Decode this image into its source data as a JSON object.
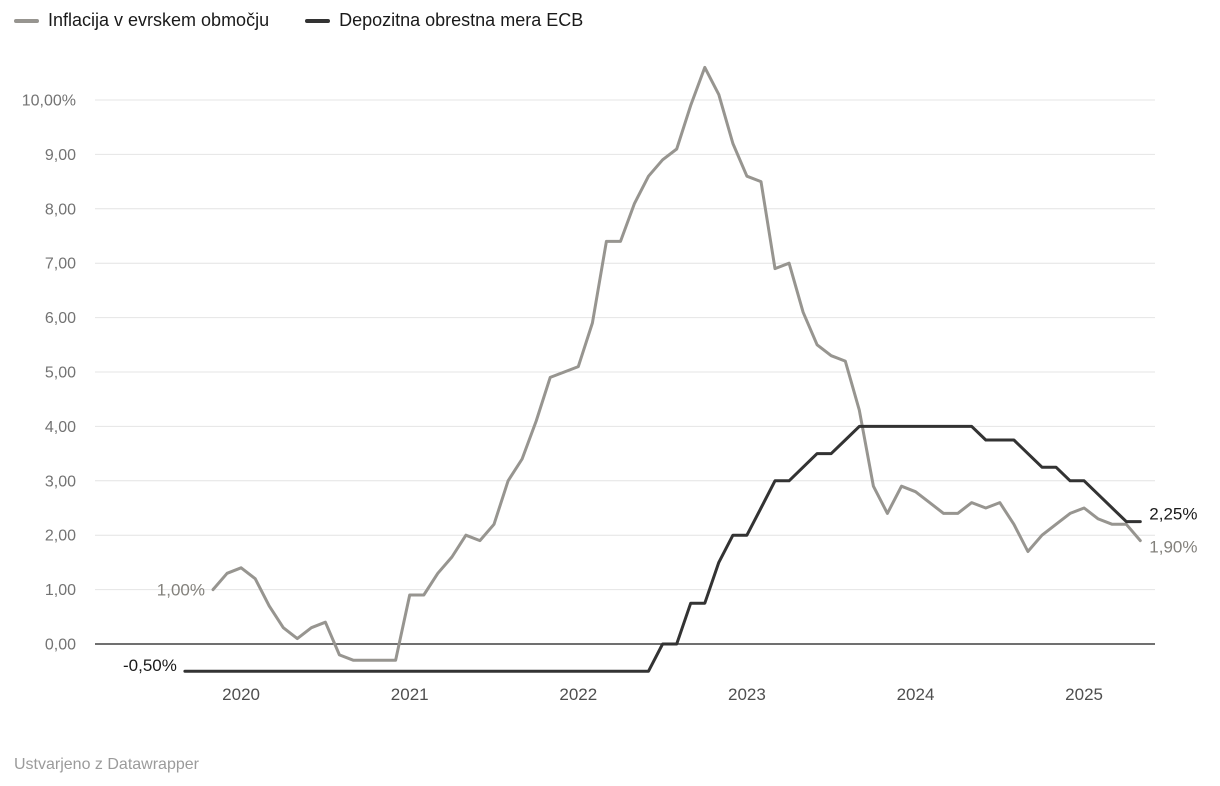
{
  "legend": {
    "items": [
      {
        "label": "Inflacija v evrskem območju",
        "color": "#979590"
      },
      {
        "label": "Depozitna obrestna mera ECB",
        "color": "#333333"
      }
    ]
  },
  "footer": {
    "text": "Ustvarjeno z Datawrapper"
  },
  "chart_data": {
    "type": "line",
    "x_unit": "month",
    "x_start": "2019-11",
    "grid": "horizontal",
    "legend_position": "top-left",
    "ylim": [
      -0.75,
      10.75
    ],
    "y_ticks": [
      {
        "value": 10,
        "label": "10,00%"
      },
      {
        "value": 9,
        "label": "9,00"
      },
      {
        "value": 8,
        "label": "8,00"
      },
      {
        "value": 7,
        "label": "7,00"
      },
      {
        "value": 6,
        "label": "6,00"
      },
      {
        "value": 5,
        "label": "5,00"
      },
      {
        "value": 4,
        "label": "4,00"
      },
      {
        "value": 3,
        "label": "3,00"
      },
      {
        "value": 2,
        "label": "2,00"
      },
      {
        "value": 1,
        "label": "1,00"
      },
      {
        "value": 0,
        "label": "0,00"
      }
    ],
    "x_ticks": [
      {
        "label": "2020",
        "month_index": 2
      },
      {
        "label": "2021",
        "month_index": 14
      },
      {
        "label": "2022",
        "month_index": 26
      },
      {
        "label": "2023",
        "month_index": 38
      },
      {
        "label": "2024",
        "month_index": 50
      },
      {
        "label": "2025",
        "month_index": 62
      }
    ],
    "series": [
      {
        "name": "Inflacija v evrskem območju",
        "color": "#979590",
        "label_color": "#83817c",
        "start_label": "1,00%",
        "end_label": "1,90%",
        "start_label_dy": 0,
        "end_label_dy": 6,
        "x_offset_months": 0,
        "values": [
          1.0,
          1.3,
          1.4,
          1.2,
          0.7,
          0.3,
          0.1,
          0.3,
          0.4,
          -0.2,
          -0.3,
          -0.3,
          -0.3,
          -0.3,
          0.9,
          0.9,
          1.3,
          1.6,
          2.0,
          1.9,
          2.2,
          3.0,
          3.4,
          4.1,
          4.9,
          5.0,
          5.1,
          5.9,
          7.4,
          7.4,
          8.1,
          8.6,
          8.9,
          9.1,
          9.9,
          10.6,
          10.1,
          9.2,
          8.6,
          8.5,
          6.9,
          7.0,
          6.1,
          5.5,
          5.3,
          5.2,
          4.3,
          2.9,
          2.4,
          2.9,
          2.8,
          2.6,
          2.4,
          2.4,
          2.6,
          2.5,
          2.6,
          2.2,
          1.7,
          2.0,
          2.2,
          2.4,
          2.5,
          2.3,
          2.2,
          2.2,
          1.9
        ]
      },
      {
        "name": "Depozitna obrestna mera ECB",
        "color": "#333333",
        "label_color": "#1a1a1a",
        "start_label": "-0,50%",
        "end_label": "2,25%",
        "start_label_dy": -6,
        "end_label_dy": -8,
        "x_offset_months": -2,
        "values": [
          -0.5,
          -0.5,
          -0.5,
          -0.5,
          -0.5,
          -0.5,
          -0.5,
          -0.5,
          -0.5,
          -0.5,
          -0.5,
          -0.5,
          -0.5,
          -0.5,
          -0.5,
          -0.5,
          -0.5,
          -0.5,
          -0.5,
          -0.5,
          -0.5,
          -0.5,
          -0.5,
          -0.5,
          -0.5,
          -0.5,
          -0.5,
          -0.5,
          -0.5,
          -0.5,
          -0.5,
          -0.5,
          -0.5,
          -0.5,
          0.0,
          0.0,
          0.75,
          0.75,
          1.5,
          2.0,
          2.0,
          2.5,
          3.0,
          3.0,
          3.25,
          3.5,
          3.5,
          3.75,
          4.0,
          4.0,
          4.0,
          4.0,
          4.0,
          4.0,
          4.0,
          4.0,
          4.0,
          3.75,
          3.75,
          3.75,
          3.5,
          3.25,
          3.25,
          3.0,
          3.0,
          2.75,
          2.5,
          2.25,
          2.25
        ]
      }
    ]
  }
}
